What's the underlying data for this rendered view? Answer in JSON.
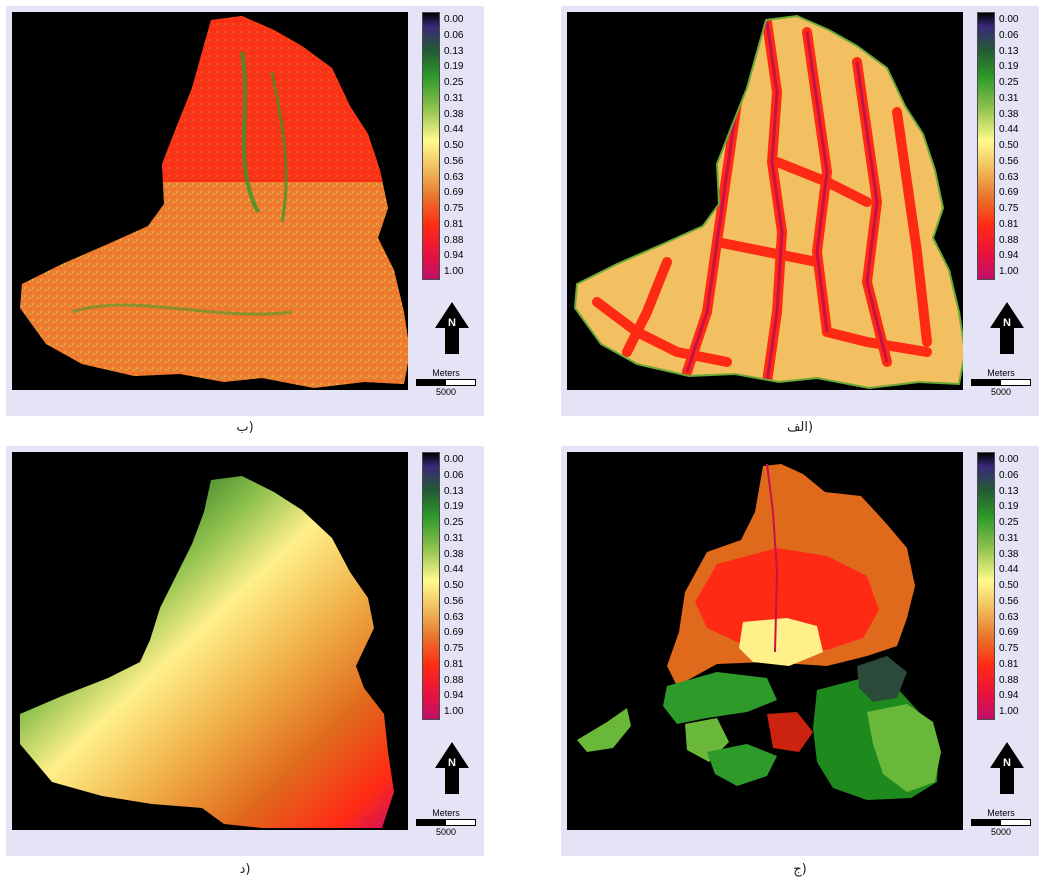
{
  "legend_ticks": [
    "0.00",
    "0.06",
    "0.13",
    "0.19",
    "0.25",
    "0.31",
    "0.38",
    "0.44",
    "0.50",
    "0.56",
    "0.63",
    "0.69",
    "0.75",
    "0.81",
    "0.88",
    "0.94",
    "1.00"
  ],
  "north_label": "N",
  "scale_unit": "Meters",
  "scale_distance": "5000",
  "panels": {
    "alef": {
      "caption": "الف)"
    },
    "be": {
      "caption": "ب)"
    },
    "jim": {
      "caption": "ج)"
    },
    "dal": {
      "caption": "د)"
    }
  },
  "colors": {
    "background": "#000000",
    "frame": "#e4e4f6"
  }
}
